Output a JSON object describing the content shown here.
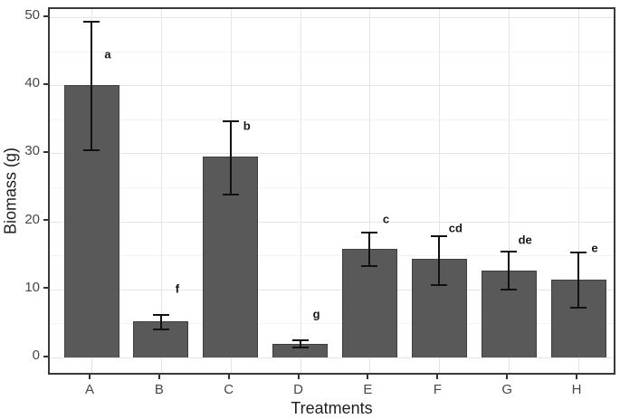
{
  "chart_data": {
    "type": "bar",
    "title": "",
    "xlabel": "Treatments",
    "ylabel": "Biomass (g)",
    "categories": [
      "A",
      "B",
      "C",
      "D",
      "E",
      "F",
      "G",
      "H"
    ],
    "values": [
      40.0,
      5.3,
      29.5,
      2.0,
      16.0,
      14.5,
      12.7,
      11.4
    ],
    "error_low": [
      30.4,
      4.1,
      24.0,
      1.4,
      13.4,
      10.7,
      10.0,
      7.3
    ],
    "error_high": [
      49.4,
      6.2,
      34.7,
      2.5,
      18.3,
      17.8,
      15.5,
      15.4
    ],
    "sig_letters": [
      "a",
      "f",
      "b",
      "g",
      "c",
      "cd",
      "de",
      "e"
    ],
    "sig_letter_y": [
      44.6,
      10.1,
      34.0,
      6.4,
      20.3,
      19.0,
      17.3,
      16.1
    ],
    "y_ticks": [
      0,
      10,
      20,
      30,
      40,
      50
    ],
    "y_minor_ticks": [
      5,
      15,
      25,
      35,
      45
    ],
    "ylim": [
      0,
      50
    ],
    "grid": true,
    "legend_position": "none",
    "bar_color": "#595959",
    "bar_edge_color": "#3f3f3f",
    "error_color": "#111111",
    "grid_major_color": "#e5e5e5",
    "grid_minor_color": "#f3f3f3",
    "panel_border_color": "#3a3a3a",
    "tick_label_color": "#474747",
    "axis_title_color": "#1f1f1f"
  }
}
